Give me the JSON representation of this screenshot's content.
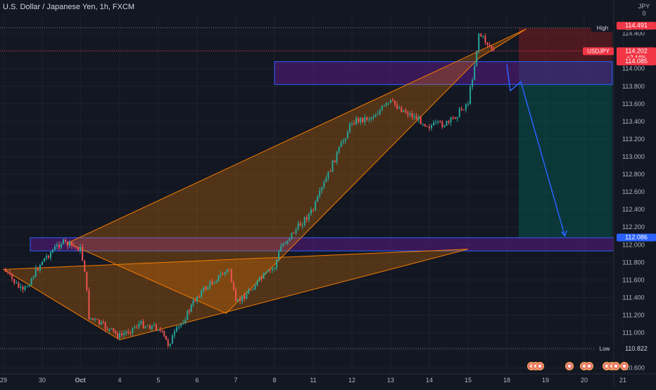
{
  "header": {
    "title": "U.S. Dollar / Japanese Yen, 1h, FXCM",
    "currency_top": "JPY",
    "currency_bottom": "0"
  },
  "colors": {
    "background": "#131722",
    "grid": "#1e222d",
    "axis_text": "#b2b5be",
    "candle_up": "#26a69a",
    "candle_down": "#ef5350",
    "pattern_fill": "#f57c00",
    "zone_fill": "#6a1b9a",
    "zone_border": "#2962ff",
    "target_fill": "#00695c",
    "stop_fill": "#b71c1c",
    "arrow": "#2962ff",
    "price_label": "#f23645"
  },
  "chart_data": {
    "type": "candlestick",
    "title": "U.S. Dollar / Japanese Yen, 1h, FXCM",
    "symbol": "USDJPY",
    "ylim": [
      110.55,
      114.62
    ],
    "y_ticks": [
      "114.400",
      "114.200",
      "114.000",
      "113.800",
      "113.600",
      "113.400",
      "113.200",
      "113.000",
      "112.800",
      "112.600",
      "112.400",
      "112.200",
      "112.000",
      "111.800",
      "111.600",
      "111.400",
      "111.200",
      "111.000",
      "110.800",
      "110.600"
    ],
    "x_ticks": [
      "29",
      "30",
      "Oct",
      "4",
      "5",
      "6",
      "7",
      "8",
      "11",
      "12",
      "13",
      "14",
      "15",
      "18",
      "19",
      "20",
      "21"
    ],
    "x_tick_dates": [
      "2021-09-29",
      "2021-09-30",
      "2021-10-01",
      "2021-10-04",
      "2021-10-05",
      "2021-10-06",
      "2021-10-07",
      "2021-10-08",
      "2021-10-11",
      "2021-10-12",
      "2021-10-13",
      "2021-10-14",
      "2021-10-15",
      "2021-10-18",
      "2021-10-19",
      "2021-10-20",
      "2021-10-21"
    ],
    "path_close": [
      [
        "2021-09-29",
        111.72
      ],
      [
        "2021-09-29T12",
        111.46
      ],
      [
        "2021-09-30",
        111.82
      ],
      [
        "2021-09-30T12",
        112.03
      ],
      [
        "2021-10-01",
        111.95
      ],
      [
        "2021-10-01T08",
        111.72
      ],
      [
        "2021-10-01T16",
        111.18
      ],
      [
        "2021-10-04",
        110.96
      ],
      [
        "2021-10-04T12",
        111.1
      ],
      [
        "2021-10-05",
        111.06
      ],
      [
        "2021-10-05T06",
        110.87
      ],
      [
        "2021-10-05T18",
        111.22
      ],
      [
        "2021-10-06",
        111.42
      ],
      [
        "2021-10-06T12",
        111.62
      ],
      [
        "2021-10-06T20",
        111.72
      ],
      [
        "2021-10-07",
        111.32
      ],
      [
        "2021-10-07T12",
        111.55
      ],
      [
        "2021-10-08",
        111.75
      ],
      [
        "2021-10-08T12",
        111.98
      ],
      [
        "2021-10-11",
        112.4
      ],
      [
        "2021-10-11T12",
        112.92
      ],
      [
        "2021-10-12",
        113.4
      ],
      [
        "2021-10-12T12",
        113.45
      ],
      [
        "2021-10-13",
        113.62
      ],
      [
        "2021-10-13T12",
        113.48
      ],
      [
        "2021-10-14",
        113.35
      ],
      [
        "2021-10-14T12",
        113.38
      ],
      [
        "2021-10-15",
        113.62
      ],
      [
        "2021-10-15T12",
        114.05
      ],
      [
        "2021-10-15T20",
        114.4
      ],
      [
        "2021-10-17",
        114.2
      ]
    ],
    "price_labels": [
      {
        "name": "High",
        "value": "114.464"
      },
      {
        "name": "",
        "value": "114.491"
      },
      {
        "name": "USDJPY",
        "value": "114.202",
        "change": "+2.44%"
      },
      {
        "name": "",
        "value": "114.085"
      },
      {
        "name": "",
        "value": "112.086"
      },
      {
        "name": "Low",
        "value": "110.822"
      }
    ],
    "high_line": 114.464,
    "low_line": 110.822,
    "current_price": 114.202,
    "current_change": "+2.44%",
    "rising_wedge": {
      "upper": [
        [
          "2021-09-30T16",
          112.02
        ],
        [
          "2021-10-18T12",
          114.45
        ]
      ],
      "lower": [
        [
          "2021-10-06T18",
          111.22
        ],
        [
          "2021-10-15T20",
          114.12
        ]
      ]
    },
    "triangle_pattern": {
      "points": [
        [
          "2021-09-29",
          111.72
        ],
        [
          "2021-10-04",
          110.92
        ],
        [
          "2021-10-15",
          111.95
        ]
      ]
    },
    "supply_zone": [
      113.82,
      114.08
    ],
    "demand_zone": [
      111.93,
      112.08
    ],
    "short_position": {
      "entry": 114.085,
      "stop": 114.46,
      "target": 112.086
    },
    "projection_arrow": {
      "from": [
        "2021-10-18",
        114.05
      ],
      "to": [
        "2021-10-19T12",
        112.1
      ]
    }
  }
}
